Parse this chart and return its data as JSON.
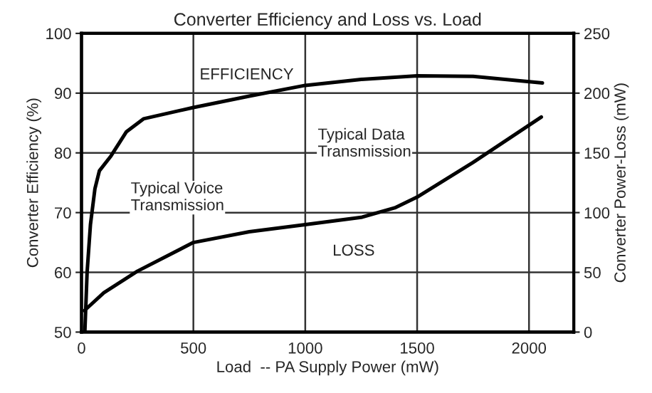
{
  "chart_data": {
    "type": "line",
    "title": "Converter Efficiency and Loss vs. Load",
    "xlabel": "Load  -- PA Supply Power (mW)",
    "ylabel": "Converter Efficiency (%)",
    "y2label": "Converter Power-Loss (mW)",
    "xlim": [
      0,
      2200
    ],
    "xticks": [
      0,
      500,
      1000,
      1500,
      2000
    ],
    "ylim": [
      50,
      100
    ],
    "yticks": [
      50,
      60,
      70,
      80,
      90,
      100
    ],
    "y2lim": [
      0,
      250
    ],
    "y2ticks": [
      0,
      50,
      100,
      150,
      200,
      250
    ],
    "grid": true,
    "legend": false,
    "series": [
      {
        "name": "EFFICIENCY",
        "color": "#000000",
        "x": [
          15,
          25,
          40,
          60,
          80,
          132,
          200,
          277,
          500,
          750,
          1000,
          1250,
          1500,
          1750,
          2060
        ],
        "values": [
          50,
          60,
          68,
          74,
          77,
          79.5,
          83.5,
          85.7,
          87.6,
          89.5,
          91.3,
          92.3,
          92.9,
          92.8,
          91.7
        ]
      },
      {
        "name": "LOSS",
        "color": "#000000",
        "axis": "y2",
        "x": [
          13,
          100,
          250,
          500,
          750,
          1000,
          1250,
          1400,
          1500,
          1750,
          2055
        ],
        "values": [
          18,
          33,
          51,
          75,
          84,
          90,
          96,
          104,
          113,
          142,
          180
        ]
      }
    ],
    "annotations": [
      "Typical Voice\nTransmission",
      "Typical Data\nTransmission"
    ]
  }
}
